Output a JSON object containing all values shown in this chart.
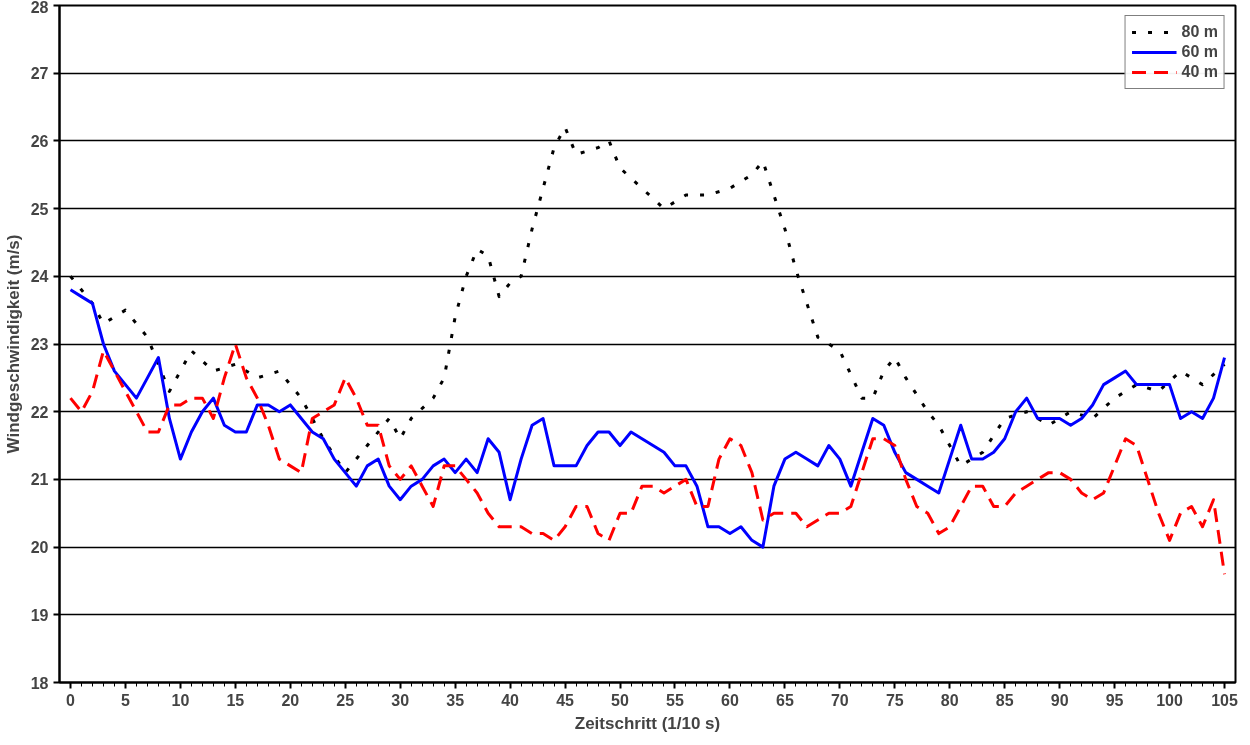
{
  "chart_data": {
    "type": "line",
    "xlabel": "Zeitschritt (1/10 s)",
    "ylabel": "Windgeschwindigkeit (m/s)",
    "xlim": [
      -1,
      106
    ],
    "xticks": [
      0,
      5,
      10,
      15,
      20,
      25,
      30,
      35,
      40,
      45,
      50,
      55,
      60,
      65,
      70,
      75,
      80,
      85,
      90,
      95,
      100,
      105
    ],
    "ylim": [
      18,
      28
    ],
    "yticks": [
      18,
      19,
      20,
      21,
      22,
      23,
      24,
      25,
      26,
      27,
      28
    ],
    "grid": "y",
    "legend": "top right",
    "marker": "none",
    "series": [
      {
        "name": "80 m",
        "color": "#000000",
        "line_style": "dotted",
        "x": [
          0,
          2,
          3,
          5,
          7,
          8,
          9,
          11,
          13,
          15,
          17,
          19,
          21,
          23,
          25,
          27,
          29,
          30,
          31,
          33,
          34,
          35,
          36,
          37,
          38,
          39,
          40,
          41,
          42,
          43,
          44,
          45,
          46,
          48,
          49,
          50,
          52,
          54,
          56,
          58,
          60,
          62,
          63,
          64,
          65,
          66,
          67,
          68,
          69,
          70,
          72,
          73,
          74,
          75,
          76,
          78,
          79,
          81,
          83,
          85,
          87,
          89,
          91,
          93,
          95,
          97,
          99,
          101,
          103,
          105
        ],
        "values": [
          24.0,
          23.6,
          23.3,
          23.5,
          23.1,
          22.7,
          22.3,
          22.9,
          22.6,
          22.7,
          22.5,
          22.6,
          22.2,
          21.6,
          21.1,
          21.5,
          21.9,
          21.6,
          21.9,
          22.2,
          22.5,
          23.4,
          24.0,
          24.4,
          24.3,
          23.7,
          23.9,
          24.0,
          24.7,
          25.3,
          25.9,
          26.2,
          25.8,
          25.9,
          26.0,
          25.6,
          25.3,
          25.0,
          25.2,
          25.2,
          25.3,
          25.5,
          25.7,
          25.2,
          24.7,
          24.1,
          23.6,
          23.1,
          23.0,
          22.9,
          22.2,
          22.2,
          22.6,
          22.8,
          22.5,
          22.0,
          21.8,
          21.2,
          21.4,
          21.9,
          22.0,
          21.8,
          22.0,
          21.9,
          22.2,
          22.4,
          22.3,
          22.6,
          22.4,
          22.7
        ]
      },
      {
        "name": "60 m",
        "color": "#0000ff",
        "line_style": "solid",
        "x": [
          0,
          1,
          2,
          3,
          4,
          5,
          6,
          7,
          8,
          9,
          10,
          11,
          12,
          13,
          14,
          15,
          16,
          17,
          18,
          19,
          20,
          21,
          22,
          23,
          24,
          25,
          26,
          27,
          28,
          29,
          30,
          31,
          32,
          33,
          34,
          35,
          36,
          37,
          38,
          39,
          40,
          41,
          42,
          43,
          44,
          45,
          46,
          47,
          48,
          49,
          50,
          51,
          52,
          53,
          54,
          55,
          56,
          57,
          58,
          59,
          60,
          61,
          62,
          63,
          64,
          65,
          66,
          67,
          68,
          69,
          70,
          71,
          72,
          73,
          74,
          75,
          76,
          77,
          78,
          79,
          80,
          81,
          82,
          83,
          84,
          85,
          86,
          87,
          88,
          89,
          90,
          91,
          92,
          93,
          94,
          95,
          96,
          97,
          98,
          99,
          100,
          101,
          102,
          103,
          104,
          105
        ],
        "values": [
          23.8,
          23.7,
          23.6,
          23.0,
          22.6,
          22.4,
          22.2,
          22.5,
          22.8,
          21.9,
          21.3,
          21.7,
          22.0,
          22.2,
          21.8,
          21.7,
          21.7,
          22.1,
          22.1,
          22.0,
          22.1,
          21.9,
          21.7,
          21.6,
          21.3,
          21.1,
          20.9,
          21.2,
          21.3,
          20.9,
          20.7,
          20.9,
          21.0,
          21.2,
          21.3,
          21.1,
          21.3,
          21.1,
          21.6,
          21.4,
          20.7,
          21.3,
          21.8,
          21.9,
          21.2,
          21.2,
          21.2,
          21.5,
          21.7,
          21.7,
          21.5,
          21.7,
          21.6,
          21.5,
          21.4,
          21.2,
          21.2,
          20.9,
          20.3,
          20.3,
          20.2,
          20.3,
          20.1,
          20.0,
          20.9,
          21.3,
          21.4,
          21.3,
          21.2,
          21.5,
          21.3,
          20.9,
          21.4,
          21.9,
          21.8,
          21.4,
          21.1,
          21.0,
          20.9,
          20.8,
          21.3,
          21.8,
          21.3,
          21.3,
          21.4,
          21.6,
          22.0,
          22.2,
          21.9,
          21.9,
          21.9,
          21.8,
          21.9,
          22.1,
          22.4,
          22.5,
          22.6,
          22.4,
          22.4,
          22.4,
          22.4,
          21.9,
          22.0,
          21.9,
          22.2,
          22.8
        ]
      },
      {
        "name": "40 m",
        "color": "#ff0000",
        "line_style": "dashed",
        "x": [
          0,
          1,
          2,
          3,
          4,
          5,
          6,
          7,
          8,
          9,
          10,
          11,
          12,
          13,
          14,
          15,
          16,
          17,
          18,
          19,
          20,
          21,
          22,
          23,
          24,
          25,
          26,
          27,
          28,
          29,
          30,
          31,
          32,
          33,
          34,
          35,
          36,
          37,
          38,
          39,
          40,
          41,
          42,
          43,
          44,
          45,
          46,
          47,
          48,
          49,
          50,
          51,
          52,
          53,
          54,
          55,
          56,
          57,
          58,
          59,
          60,
          61,
          62,
          63,
          64,
          65,
          66,
          67,
          68,
          69,
          70,
          71,
          72,
          73,
          74,
          75,
          76,
          77,
          78,
          79,
          80,
          81,
          82,
          83,
          84,
          85,
          86,
          87,
          88,
          89,
          90,
          91,
          92,
          93,
          94,
          95,
          96,
          97,
          98,
          99,
          100,
          101,
          102,
          103,
          104,
          105
        ],
        "values": [
          22.2,
          22.0,
          22.3,
          22.9,
          22.6,
          22.3,
          22.0,
          21.7,
          21.7,
          22.1,
          22.1,
          22.2,
          22.2,
          21.9,
          22.5,
          23.0,
          22.5,
          22.2,
          21.8,
          21.3,
          21.2,
          21.1,
          21.9,
          22.0,
          22.1,
          22.5,
          22.2,
          21.8,
          21.8,
          21.2,
          21.0,
          21.2,
          20.9,
          20.6,
          21.2,
          21.2,
          21.0,
          20.8,
          20.5,
          20.3,
          20.3,
          20.3,
          20.2,
          20.2,
          20.1,
          20.3,
          20.6,
          20.6,
          20.2,
          20.1,
          20.5,
          20.5,
          20.9,
          20.9,
          20.8,
          20.9,
          21.0,
          20.6,
          20.6,
          21.3,
          21.6,
          21.5,
          21.1,
          20.4,
          20.5,
          20.5,
          20.5,
          20.3,
          20.4,
          20.5,
          20.5,
          20.6,
          21.1,
          21.6,
          21.6,
          21.5,
          21.0,
          20.6,
          20.5,
          20.2,
          20.3,
          20.6,
          20.9,
          20.9,
          20.6,
          20.6,
          20.8,
          20.9,
          21.0,
          21.1,
          21.1,
          21.0,
          20.8,
          20.7,
          20.8,
          21.2,
          21.6,
          21.5,
          21.0,
          20.5,
          20.1,
          20.5,
          20.6,
          20.3,
          20.7,
          19.6
        ]
      }
    ]
  }
}
